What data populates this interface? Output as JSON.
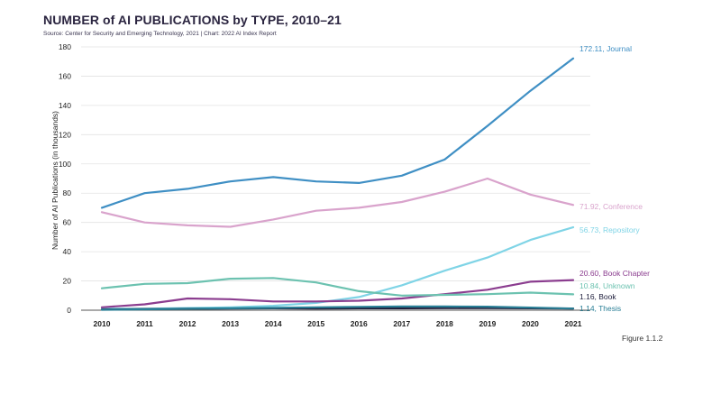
{
  "header": {
    "title": "NUMBER of AI PUBLICATIONS by TYPE, 2010–21",
    "source": "Source: Center for Security and Emerging Technology, 2021 | Chart: 2022 AI Index Report"
  },
  "figure_label": "Figure 1.1.2",
  "chart_data": {
    "type": "line",
    "title": "NUMBER of AI PUBLICATIONS by TYPE, 2010–21",
    "xlabel": "",
    "ylabel": "Number of AI Publications (in thousands)",
    "x": [
      "2010",
      "2011",
      "2012",
      "2013",
      "2014",
      "2015",
      "2016",
      "2017",
      "2018",
      "2019",
      "2020",
      "2021"
    ],
    "ylim": [
      0,
      180
    ],
    "yticks": [
      0,
      20,
      40,
      60,
      80,
      100,
      120,
      140,
      160,
      180
    ],
    "grid": "horizontal",
    "series": [
      {
        "name": "Journal",
        "label": "172.11, Journal",
        "color": "#3f8fc4",
        "values": [
          70,
          80,
          83,
          88,
          91,
          88,
          87,
          92,
          103,
          126,
          150,
          172.11
        ]
      },
      {
        "name": "Conference",
        "label": "71.92, Conference",
        "color": "#d9a3cc",
        "values": [
          67,
          60,
          58,
          57,
          62,
          68,
          70,
          74,
          81,
          90,
          79,
          71.92
        ]
      },
      {
        "name": "Repository",
        "label": "56.73, Repository",
        "color": "#7fd4e6",
        "values": [
          1,
          1,
          1.5,
          2,
          3,
          5,
          9,
          17,
          27,
          36,
          48,
          56.73
        ]
      },
      {
        "name": "Book Chapter",
        "label": "20.60, Book Chapter",
        "color": "#8b3d8f",
        "values": [
          2,
          4,
          8,
          7.5,
          6,
          6,
          6.5,
          8,
          11,
          14,
          19.5,
          20.6
        ]
      },
      {
        "name": "Unknown",
        "label": "10.84, Unknown",
        "color": "#6cc2b0",
        "values": [
          15,
          18,
          18.5,
          21.5,
          22,
          19,
          13,
          10,
          10.5,
          11,
          12,
          10.84
        ]
      },
      {
        "name": "Book",
        "label": "1.16, Book",
        "color": "#1e1e3c",
        "values": [
          0.5,
          0.8,
          1.0,
          1.2,
          1.3,
          1.2,
          1.3,
          1.3,
          1.4,
          1.4,
          1.3,
          1.16
        ]
      },
      {
        "name": "Thesis",
        "label": "1.14, Thesis",
        "color": "#2a7f96",
        "values": [
          0.3,
          0.6,
          1.0,
          1.3,
          1.6,
          2.0,
          2.3,
          2.5,
          2.5,
          2.4,
          1.8,
          1.14
        ]
      }
    ]
  }
}
